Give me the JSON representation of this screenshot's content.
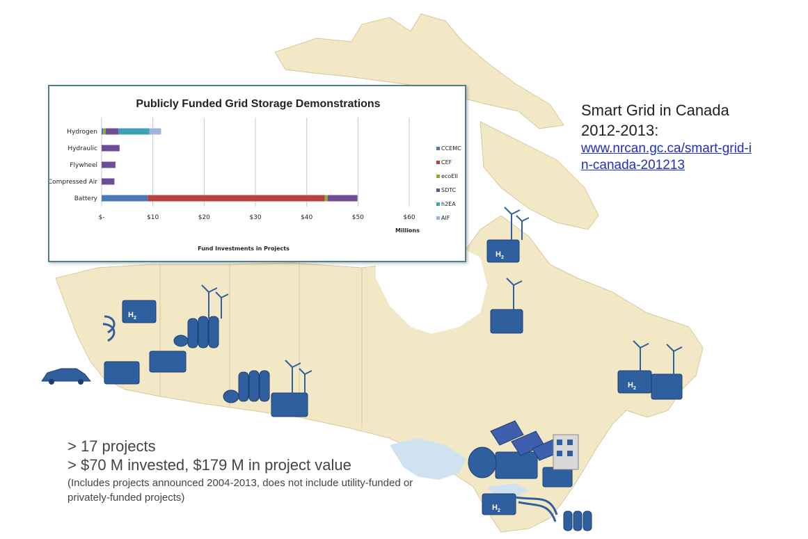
{
  "side_text": {
    "title_line1": "Smart Grid in Canada",
    "title_line2": "2012-2013:",
    "link": "www.nrcan.gc.ca/smart-grid-in-canada-201213"
  },
  "bottom_text": {
    "line1": "> 17 projects",
    "line2": "> $70 M invested, $179 M in project value",
    "note": "(Includes projects announced 2004-2013, does not include utility-funded or privately-funded projects)"
  },
  "map_icons": {
    "hydrogen_label": "H",
    "hydrogen_subscript": "2"
  },
  "colors": {
    "CCEMC": "#4a7ab5",
    "CEF": "#b8403e",
    "ecoEII": "#8faa3d",
    "SDTC": "#6f4d94",
    "h2EA": "#3fa0b9",
    "AIF": "#9db5dc",
    "land": "#f3e8c6",
    "water": "#cfe2f0",
    "equipment": "#2f5f9e"
  },
  "chart_data": {
    "type": "bar",
    "orientation": "horizontal",
    "stacked": true,
    "title": "Publicly Funded Grid Storage Demonstrations",
    "xlabel": "Fund Investments in Projects",
    "x_unit_label": "Millions",
    "categories": [
      "Hydrogen",
      "Hydraulic",
      "Flywheel",
      "Compressed Air",
      "Battery"
    ],
    "x_ticks": [
      "$-",
      "$10",
      "$20",
      "$30",
      "$40",
      "$50",
      "$60"
    ],
    "xlim": [
      0,
      60
    ],
    "grid": true,
    "legend_position": "right",
    "series": [
      {
        "name": "CCEMC",
        "values": [
          0.3,
          0,
          0,
          0,
          9
        ]
      },
      {
        "name": "CEF",
        "values": [
          0,
          0,
          0,
          0,
          34.5
        ]
      },
      {
        "name": "ecoEII",
        "values": [
          0.5,
          0,
          0,
          0,
          0.6
        ]
      },
      {
        "name": "SDTC",
        "values": [
          2.5,
          3.5,
          2.7,
          2.5,
          5.8
        ]
      },
      {
        "name": "h2EA",
        "values": [
          6,
          0,
          0,
          0,
          0
        ]
      },
      {
        "name": "AIF",
        "values": [
          2.3,
          0,
          0,
          0,
          0
        ]
      }
    ]
  }
}
